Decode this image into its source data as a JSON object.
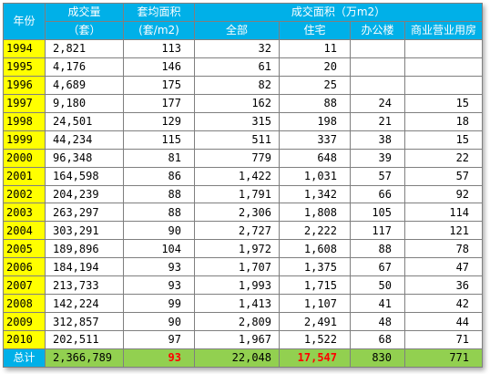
{
  "colors": {
    "header_bg": "#00b0e8",
    "year_bg": "#ffff00",
    "total_bg": "#92d050",
    "highlight_text": "#ff0000"
  },
  "headers": {
    "year": "年份",
    "volume": "成交量",
    "volume_unit": "（套）",
    "avg_area": "套均面积",
    "avg_area_unit": "(套/m2)",
    "area_group": "成交面积（万m2）",
    "area_total": "全部",
    "area_residential": "住宅",
    "area_office": "办公楼",
    "area_commercial": "商业营业用房"
  },
  "rows": [
    {
      "year": "1994",
      "volume": "2,821",
      "avg": "113",
      "total": "32",
      "residential": "11",
      "office": "",
      "commercial": ""
    },
    {
      "year": "1995",
      "volume": "4,176",
      "avg": "146",
      "total": "61",
      "residential": "20",
      "office": "",
      "commercial": ""
    },
    {
      "year": "1996",
      "volume": "4,689",
      "avg": "175",
      "total": "82",
      "residential": "25",
      "office": "",
      "commercial": ""
    },
    {
      "year": "1997",
      "volume": "9,180",
      "avg": "177",
      "total": "162",
      "residential": "88",
      "office": "24",
      "commercial": "15"
    },
    {
      "year": "1998",
      "volume": "24,501",
      "avg": "129",
      "total": "315",
      "residential": "198",
      "office": "21",
      "commercial": "18"
    },
    {
      "year": "1999",
      "volume": "44,234",
      "avg": "115",
      "total": "511",
      "residential": "337",
      "office": "38",
      "commercial": "15"
    },
    {
      "year": "2000",
      "volume": "96,348",
      "avg": "81",
      "total": "779",
      "residential": "648",
      "office": "39",
      "commercial": "22"
    },
    {
      "year": "2001",
      "volume": "164,598",
      "avg": "86",
      "total": "1,422",
      "residential": "1,031",
      "office": "57",
      "commercial": "57"
    },
    {
      "year": "2002",
      "volume": "204,239",
      "avg": "88",
      "total": "1,791",
      "residential": "1,342",
      "office": "66",
      "commercial": "92"
    },
    {
      "year": "2003",
      "volume": "263,297",
      "avg": "88",
      "total": "2,306",
      "residential": "1,808",
      "office": "105",
      "commercial": "114"
    },
    {
      "year": "2004",
      "volume": "303,291",
      "avg": "90",
      "total": "2,727",
      "residential": "2,222",
      "office": "117",
      "commercial": "121"
    },
    {
      "year": "2005",
      "volume": "189,896",
      "avg": "104",
      "total": "1,972",
      "residential": "1,608",
      "office": "88",
      "commercial": "78"
    },
    {
      "year": "2006",
      "volume": "184,194",
      "avg": "93",
      "total": "1,707",
      "residential": "1,375",
      "office": "67",
      "commercial": "47"
    },
    {
      "year": "2007",
      "volume": "213,733",
      "avg": "93",
      "total": "1,993",
      "residential": "1,715",
      "office": "50",
      "commercial": "36"
    },
    {
      "year": "2008",
      "volume": "142,224",
      "avg": "99",
      "total": "1,413",
      "residential": "1,107",
      "office": "41",
      "commercial": "42"
    },
    {
      "year": "2009",
      "volume": "312,857",
      "avg": "90",
      "total": "2,809",
      "residential": "2,491",
      "office": "48",
      "commercial": "44"
    },
    {
      "year": "2010",
      "volume": "202,511",
      "avg": "97",
      "total": "1,967",
      "residential": "1,522",
      "office": "68",
      "commercial": "71"
    }
  ],
  "total": {
    "label": "总计",
    "volume": "2,366,789",
    "avg": "93",
    "total": "22,048",
    "residential": "17,547",
    "office": "830",
    "commercial": "771"
  }
}
